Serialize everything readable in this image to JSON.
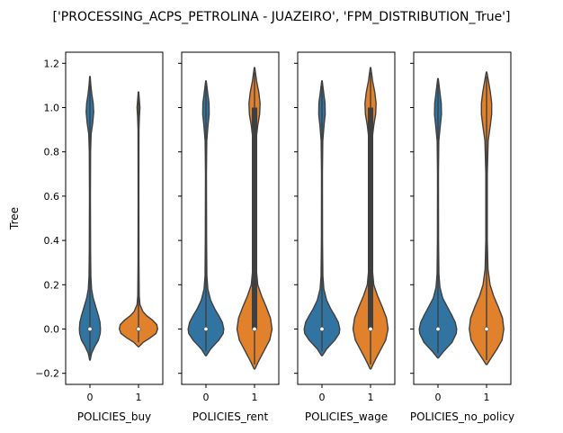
{
  "figure_title": "['PROCESSING_ACPS_PETROLINA - JUAZEIRO', 'FPM_DISTRIBUTION_True']",
  "chart_data": {
    "type": "violin",
    "title": "['PROCESSING_ACPS_PETROLINA - JUAZEIRO', 'FPM_DISTRIBUTION_True']",
    "ylabel": "Tree",
    "ylim": [
      -0.25,
      1.25
    ],
    "yticks": [
      -0.2,
      0.0,
      0.2,
      0.4,
      0.6,
      0.8,
      1.0,
      1.2
    ],
    "ytick_labels": [
      "−0.2",
      "0.0",
      "0.2",
      "0.4",
      "0.6",
      "0.8",
      "1.0",
      "1.2"
    ],
    "categories": [
      "0",
      "1"
    ],
    "colors": {
      "0": "#3274a1",
      "1": "#e1812c",
      "edge": "#3f3f3f"
    },
    "panels": [
      {
        "xlabel": "POLICIES_buy",
        "violins": [
          {
            "category": "0",
            "min": -0.14,
            "max": 1.14,
            "median": 0.0,
            "q1": 0.0,
            "q3": 0.0,
            "profile": [
              [
                -0.14,
                0.01
              ],
              [
                -0.11,
                0.07
              ],
              [
                -0.08,
                0.2
              ],
              [
                -0.05,
                0.36
              ],
              [
                -0.02,
                0.44
              ],
              [
                0.0,
                0.45
              ],
              [
                0.03,
                0.43
              ],
              [
                0.06,
                0.36
              ],
              [
                0.1,
                0.25
              ],
              [
                0.14,
                0.14
              ],
              [
                0.18,
                0.07
              ],
              [
                0.24,
                0.04
              ],
              [
                0.35,
                0.025
              ],
              [
                0.6,
                0.02
              ],
              [
                0.8,
                0.025
              ],
              [
                0.88,
                0.05
              ],
              [
                0.93,
                0.12
              ],
              [
                0.98,
                0.16
              ],
              [
                1.02,
                0.14
              ],
              [
                1.06,
                0.08
              ],
              [
                1.1,
                0.04
              ],
              [
                1.14,
                0.01
              ]
            ]
          },
          {
            "category": "1",
            "min": -0.08,
            "max": 1.07,
            "median": 0.0,
            "q1": 0.0,
            "q3": 0.0,
            "profile": [
              [
                -0.08,
                0.01
              ],
              [
                -0.06,
                0.2
              ],
              [
                -0.04,
                0.5
              ],
              [
                -0.02,
                0.75
              ],
              [
                0.0,
                0.82
              ],
              [
                0.02,
                0.78
              ],
              [
                0.04,
                0.6
              ],
              [
                0.06,
                0.35
              ],
              [
                0.08,
                0.18
              ],
              [
                0.11,
                0.06
              ],
              [
                0.15,
                0.03
              ],
              [
                0.3,
                0.02
              ],
              [
                0.6,
                0.015
              ],
              [
                0.9,
                0.018
              ],
              [
                0.96,
                0.04
              ],
              [
                1.0,
                0.06
              ],
              [
                1.03,
                0.04
              ],
              [
                1.07,
                0.01
              ]
            ]
          }
        ]
      },
      {
        "xlabel": "POLICIES_rent",
        "violins": [
          {
            "category": "0",
            "min": -0.12,
            "max": 1.12,
            "median": 0.0,
            "q1": 0.0,
            "q3": 0.0,
            "profile": [
              [
                -0.12,
                0.02
              ],
              [
                -0.09,
                0.2
              ],
              [
                -0.05,
                0.55
              ],
              [
                -0.02,
                0.74
              ],
              [
                0.0,
                0.76
              ],
              [
                0.03,
                0.7
              ],
              [
                0.06,
                0.55
              ],
              [
                0.09,
                0.38
              ],
              [
                0.13,
                0.2
              ],
              [
                0.18,
                0.08
              ],
              [
                0.24,
                0.04
              ],
              [
                0.4,
                0.025
              ],
              [
                0.7,
                0.02
              ],
              [
                0.85,
                0.035
              ],
              [
                0.92,
                0.09
              ],
              [
                0.97,
                0.14
              ],
              [
                1.02,
                0.13
              ],
              [
                1.06,
                0.08
              ],
              [
                1.12,
                0.01
              ]
            ]
          },
          {
            "category": "1",
            "min": -0.18,
            "max": 1.18,
            "median": 0.0,
            "q1": 0.0,
            "q3": 1.0,
            "profile": [
              [
                -0.18,
                0.02
              ],
              [
                -0.15,
                0.15
              ],
              [
                -0.1,
                0.4
              ],
              [
                -0.05,
                0.65
              ],
              [
                0.0,
                0.75
              ],
              [
                0.05,
                0.68
              ],
              [
                0.1,
                0.5
              ],
              [
                0.15,
                0.3
              ],
              [
                0.2,
                0.14
              ],
              [
                0.3,
                0.05
              ],
              [
                0.5,
                0.03
              ],
              [
                0.7,
                0.03
              ],
              [
                0.85,
                0.06
              ],
              [
                0.92,
                0.14
              ],
              [
                0.97,
                0.22
              ],
              [
                1.02,
                0.24
              ],
              [
                1.07,
                0.18
              ],
              [
                1.12,
                0.09
              ],
              [
                1.18,
                0.01
              ]
            ]
          }
        ]
      },
      {
        "xlabel": "POLICIES_wage",
        "violins": [
          {
            "category": "0",
            "min": -0.12,
            "max": 1.12,
            "median": 0.0,
            "q1": 0.0,
            "q3": 0.0,
            "profile": [
              [
                -0.12,
                0.02
              ],
              [
                -0.09,
                0.2
              ],
              [
                -0.05,
                0.55
              ],
              [
                -0.02,
                0.74
              ],
              [
                0.0,
                0.76
              ],
              [
                0.03,
                0.7
              ],
              [
                0.06,
                0.55
              ],
              [
                0.09,
                0.38
              ],
              [
                0.13,
                0.2
              ],
              [
                0.18,
                0.08
              ],
              [
                0.24,
                0.04
              ],
              [
                0.4,
                0.025
              ],
              [
                0.7,
                0.02
              ],
              [
                0.85,
                0.035
              ],
              [
                0.92,
                0.09
              ],
              [
                0.97,
                0.14
              ],
              [
                1.02,
                0.13
              ],
              [
                1.06,
                0.08
              ],
              [
                1.12,
                0.01
              ]
            ]
          },
          {
            "category": "1",
            "min": -0.18,
            "max": 1.18,
            "median": 0.0,
            "q1": 0.0,
            "q3": 1.0,
            "profile": [
              [
                -0.18,
                0.02
              ],
              [
                -0.15,
                0.15
              ],
              [
                -0.1,
                0.4
              ],
              [
                -0.05,
                0.65
              ],
              [
                0.0,
                0.75
              ],
              [
                0.05,
                0.68
              ],
              [
                0.1,
                0.5
              ],
              [
                0.15,
                0.3
              ],
              [
                0.2,
                0.14
              ],
              [
                0.3,
                0.05
              ],
              [
                0.5,
                0.03
              ],
              [
                0.7,
                0.03
              ],
              [
                0.85,
                0.06
              ],
              [
                0.92,
                0.14
              ],
              [
                0.97,
                0.22
              ],
              [
                1.02,
                0.24
              ],
              [
                1.07,
                0.18
              ],
              [
                1.12,
                0.09
              ],
              [
                1.18,
                0.01
              ]
            ]
          }
        ]
      },
      {
        "xlabel": "POLICIES_no_policy",
        "violins": [
          {
            "category": "0",
            "min": -0.13,
            "max": 1.13,
            "median": 0.0,
            "q1": 0.0,
            "q3": 0.0,
            "profile": [
              [
                -0.13,
                0.02
              ],
              [
                -0.1,
                0.25
              ],
              [
                -0.06,
                0.6
              ],
              [
                -0.02,
                0.78
              ],
              [
                0.0,
                0.8
              ],
              [
                0.03,
                0.74
              ],
              [
                0.06,
                0.6
              ],
              [
                0.1,
                0.4
              ],
              [
                0.14,
                0.2
              ],
              [
                0.19,
                0.08
              ],
              [
                0.25,
                0.04
              ],
              [
                0.4,
                0.025
              ],
              [
                0.7,
                0.02
              ],
              [
                0.85,
                0.035
              ],
              [
                0.92,
                0.1
              ],
              [
                0.97,
                0.15
              ],
              [
                1.02,
                0.14
              ],
              [
                1.07,
                0.08
              ],
              [
                1.13,
                0.01
              ]
            ]
          },
          {
            "category": "1",
            "min": -0.16,
            "max": 1.16,
            "median": 0.0,
            "q1": 0.0,
            "q3": 0.0,
            "profile": [
              [
                -0.16,
                0.02
              ],
              [
                -0.13,
                0.2
              ],
              [
                -0.09,
                0.45
              ],
              [
                -0.05,
                0.66
              ],
              [
                0.0,
                0.74
              ],
              [
                0.05,
                0.68
              ],
              [
                0.1,
                0.5
              ],
              [
                0.15,
                0.3
              ],
              [
                0.2,
                0.15
              ],
              [
                0.27,
                0.06
              ],
              [
                0.4,
                0.03
              ],
              [
                0.7,
                0.03
              ],
              [
                0.85,
                0.07
              ],
              [
                0.92,
                0.16
              ],
              [
                0.97,
                0.22
              ],
              [
                1.02,
                0.22
              ],
              [
                1.07,
                0.16
              ],
              [
                1.12,
                0.08
              ],
              [
                1.16,
                0.01
              ]
            ]
          }
        ]
      }
    ]
  }
}
